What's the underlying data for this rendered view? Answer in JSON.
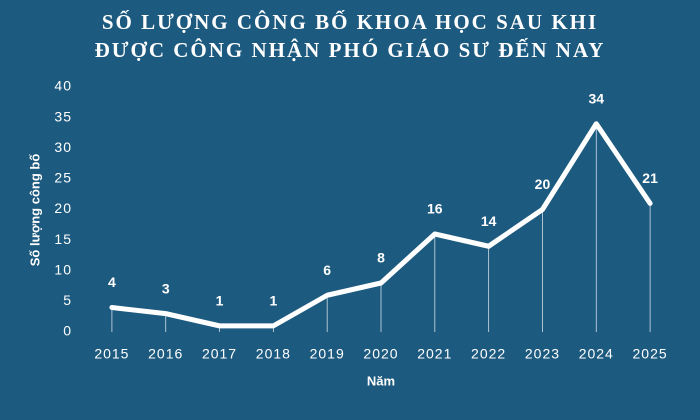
{
  "chart_data": {
    "type": "line",
    "title": [
      "SỐ LƯỢNG CÔNG BỐ KHOA HỌC SAU KHI",
      "ĐƯỢC CÔNG NHẬN PHÓ GIÁO SƯ ĐẾN NAY"
    ],
    "x_label": "Năm",
    "y_label": "Số lượng công bố",
    "categories": [
      "2015",
      "2016",
      "2017",
      "2018",
      "2019",
      "2020",
      "2021",
      "2022",
      "2023",
      "2024",
      "2025"
    ],
    "values": [
      4,
      3,
      1,
      1,
      6,
      8,
      16,
      14,
      20,
      34,
      21
    ],
    "color": "#ffffff",
    "ylim": [
      0,
      40
    ],
    "yticks": [
      0,
      5,
      10,
      15,
      20,
      25,
      30,
      35,
      40
    ],
    "grid": false,
    "drop_lines": true
  }
}
